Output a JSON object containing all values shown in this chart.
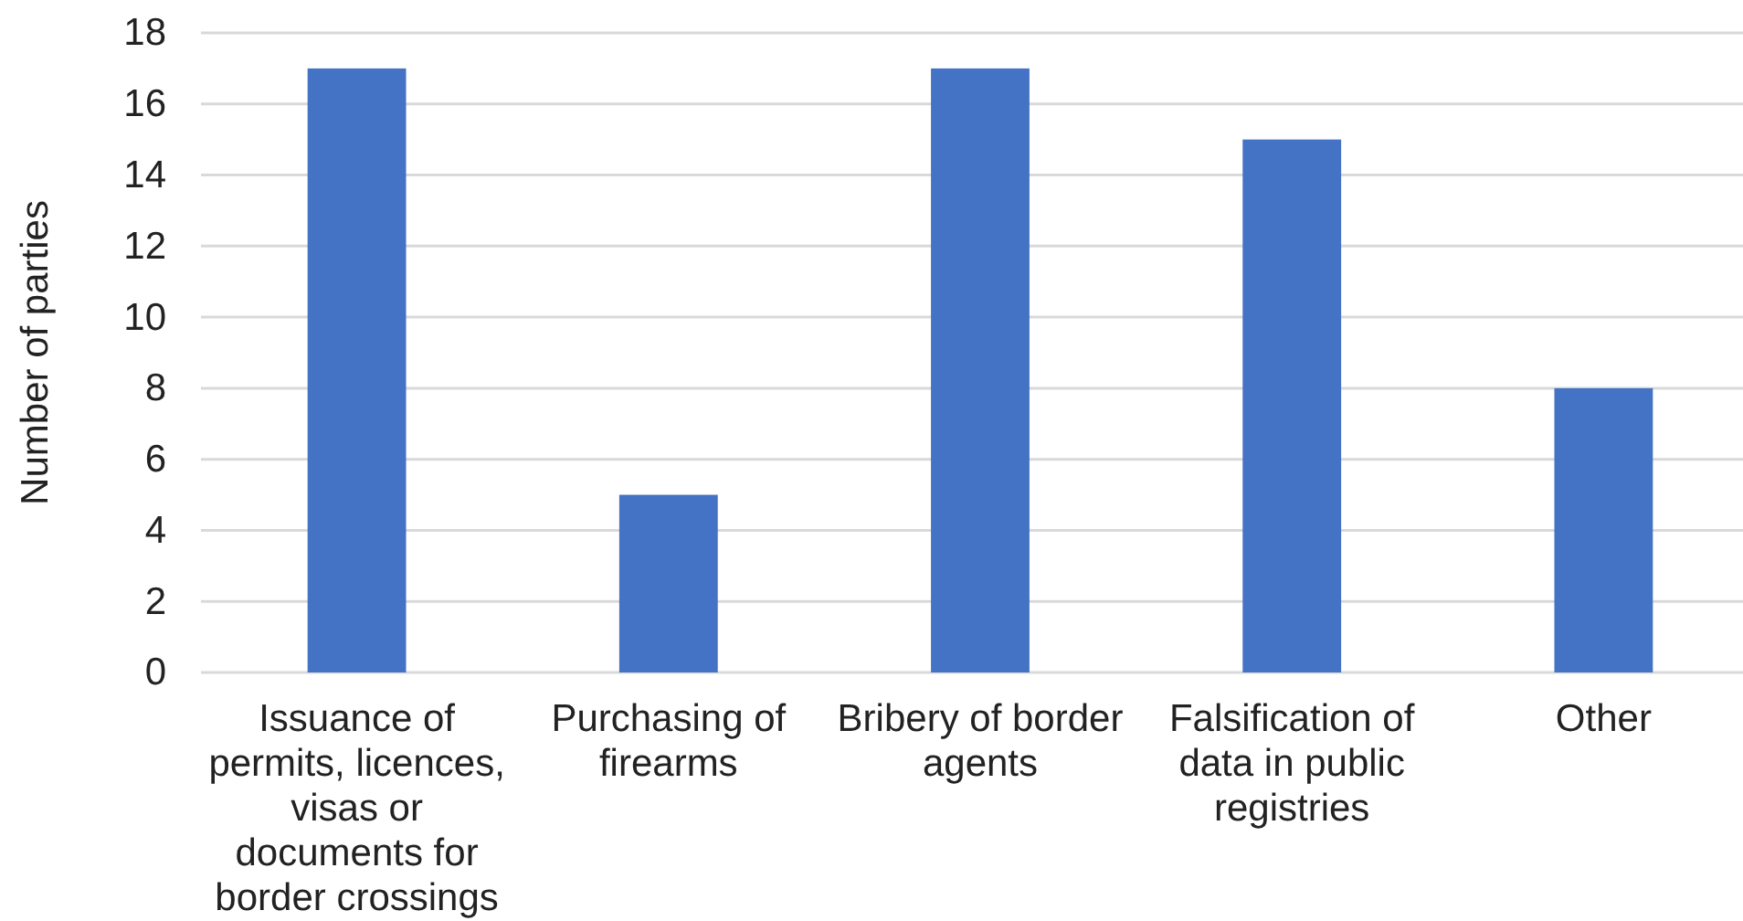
{
  "chart_data": {
    "type": "bar",
    "ylabel": "Number of parties",
    "categories": [
      "Issuance of permits, licences, visas or documents for border crossings",
      "Purchasing of firearms",
      "Bribery of border agents",
      "Falsification of data in public registries",
      "Other"
    ],
    "values": [
      17,
      5,
      17,
      15,
      8
    ],
    "color": "#4472c4",
    "ylim": [
      0,
      18
    ],
    "yticks": [
      0,
      2,
      4,
      6,
      8,
      10,
      12,
      14,
      16,
      18
    ],
    "grid": "y"
  }
}
